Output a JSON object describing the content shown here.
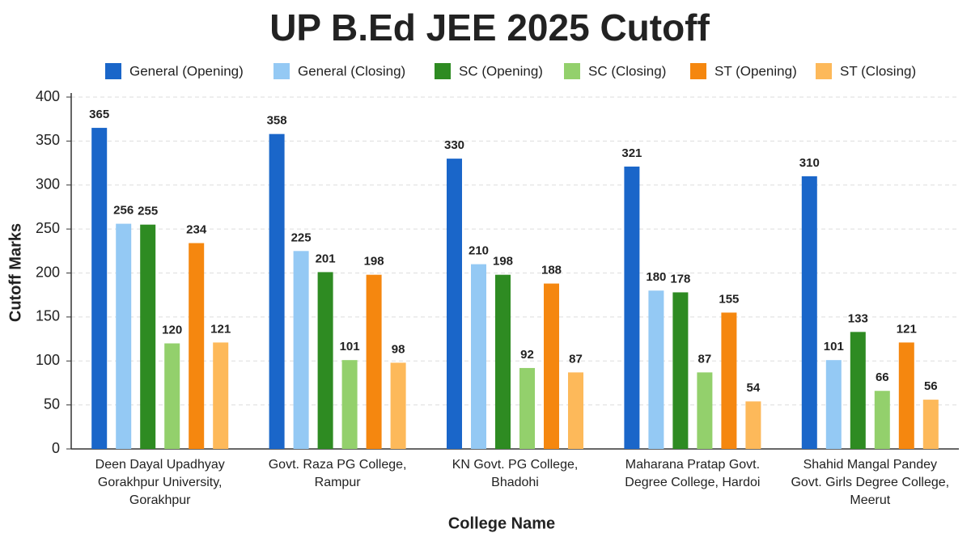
{
  "chart_data": {
    "type": "bar",
    "title": "UP B.Ed JEE 2025 Cutoff",
    "x_label": "College Name",
    "y_label": "Cutoff Marks",
    "categories": [
      "Deen Dayal Upadhyay\nGorakhpur University,\nGorakhpur",
      "Govt. Raza PG College,\nRampur",
      "KN Govt. PG College,\nBhadohi",
      "Maharana Pratap Govt.\nDegree College, Hardoi",
      "Shahid Mangal Pandey\nGovt. Girls Degree College,\nMeerut"
    ],
    "series": [
      {
        "name": "General (Opening)",
        "color": "#1a66c9",
        "values": [
          365,
          358,
          330,
          321,
          310
        ]
      },
      {
        "name": "General (Closing)",
        "color": "#94c9f4",
        "values": [
          256,
          225,
          210,
          180,
          101
        ]
      },
      {
        "name": "SC (Opening)",
        "color": "#2e8b22",
        "values": [
          255,
          201,
          198,
          178,
          133
        ]
      },
      {
        "name": "SC (Closing)",
        "color": "#93d06c",
        "values": [
          120,
          101,
          92,
          87,
          66
        ]
      },
      {
        "name": "ST (Opening)",
        "color": "#f5870f",
        "values": [
          234,
          198,
          188,
          155,
          121
        ]
      },
      {
        "name": "ST (Closing)",
        "color": "#fdb95a",
        "values": [
          121,
          98,
          87,
          54,
          56
        ]
      }
    ],
    "ylim": [
      0,
      400
    ],
    "yticks": [
      0,
      50,
      100,
      150,
      200,
      250,
      300,
      350,
      400
    ],
    "grid": true,
    "legend": "top"
  }
}
